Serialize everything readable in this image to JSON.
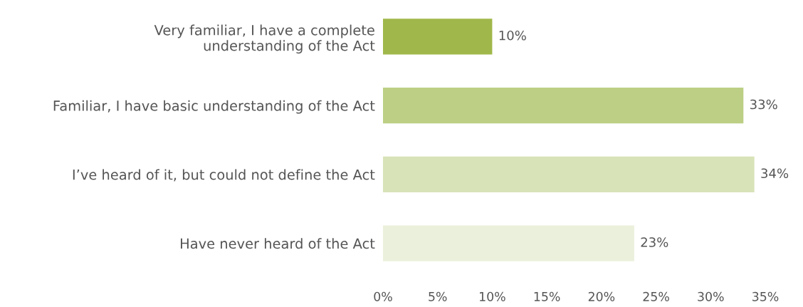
{
  "chart_data": {
    "type": "bar",
    "orientation": "horizontal",
    "categories": [
      "Very familiar, I have a complete\nunderstanding of the Act",
      "Familiar, I have basic understanding of the Act",
      "I’ve heard of it, but could not define the Act",
      "Have never heard of the Act"
    ],
    "values": [
      10,
      33,
      34,
      23
    ],
    "colors": [
      "#a0b84b",
      "#bccf85",
      "#d8e3b7",
      "#ebf0dc"
    ],
    "value_labels": [
      "10%",
      "33%",
      "34%",
      "23%"
    ],
    "xlim": [
      0,
      35
    ],
    "xticks": [
      {
        "value": 0,
        "label": "0%"
      },
      {
        "value": 5,
        "label": "5%"
      },
      {
        "value": 10,
        "label": "10%"
      },
      {
        "value": 15,
        "label": "15%"
      },
      {
        "value": 20,
        "label": "20%"
      },
      {
        "value": 25,
        "label": "25%"
      },
      {
        "value": 30,
        "label": "30%"
      },
      {
        "value": 35,
        "label": "35%"
      }
    ],
    "grid": false,
    "legend": false
  }
}
